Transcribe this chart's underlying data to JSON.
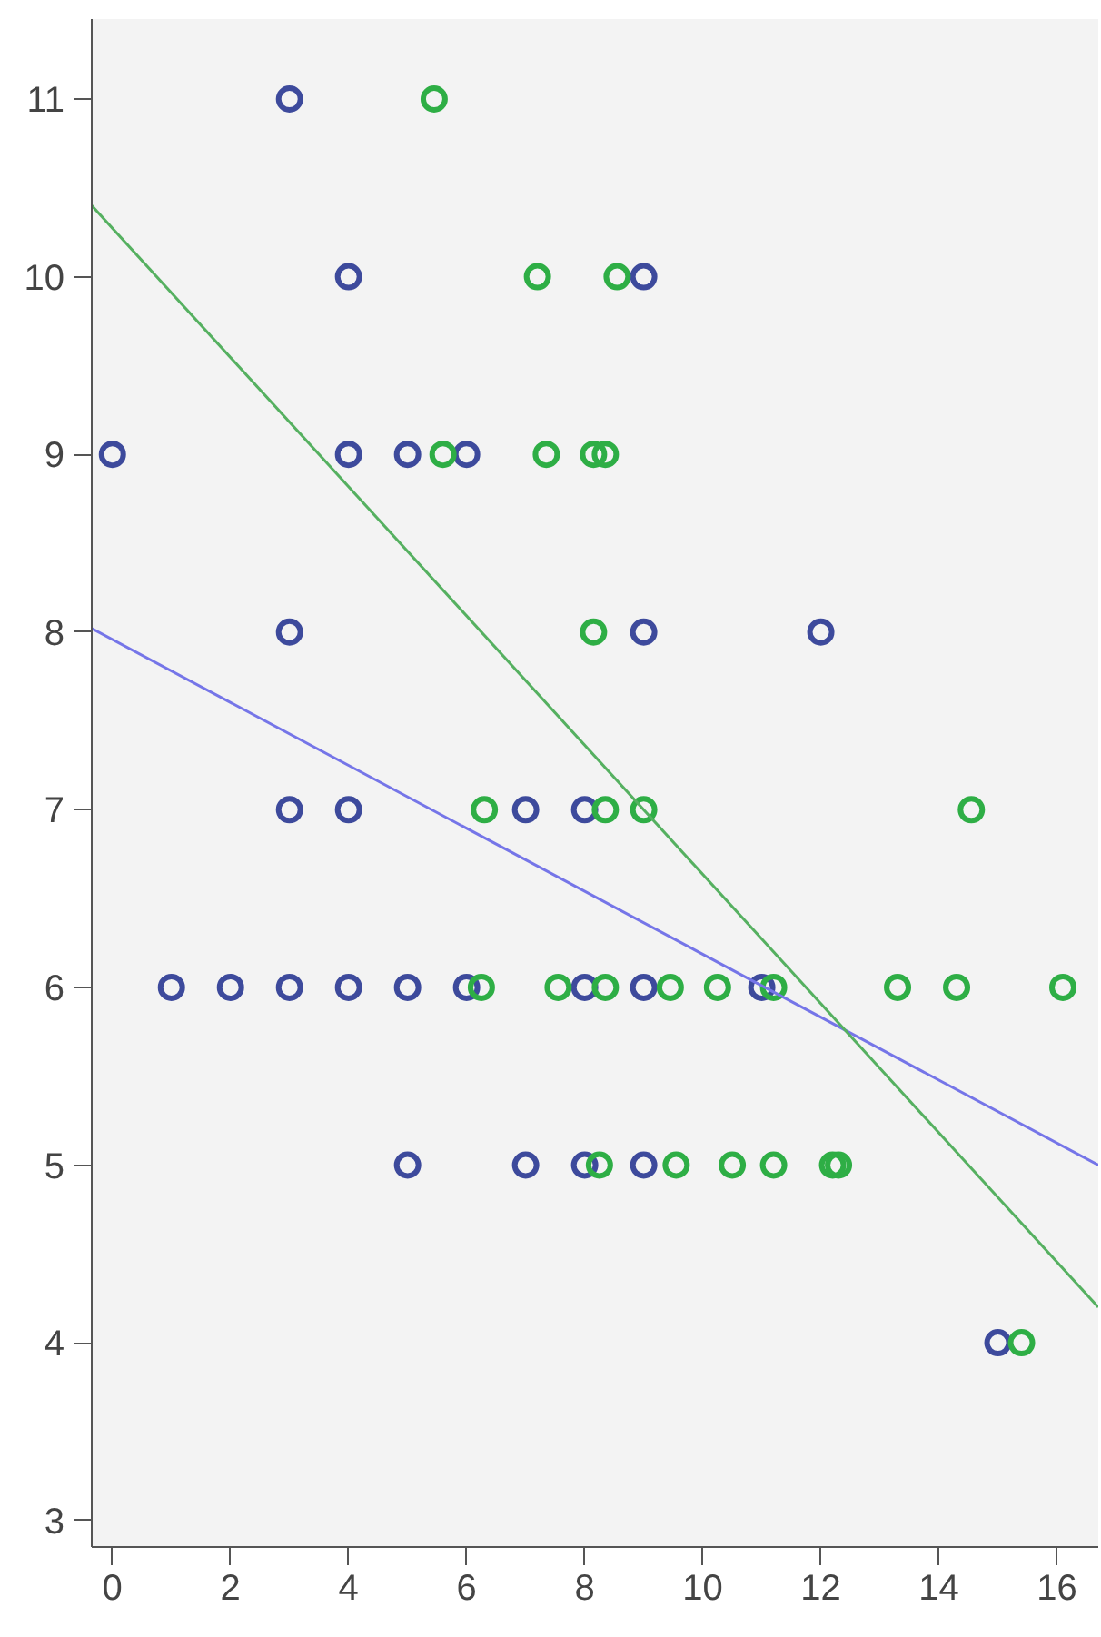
{
  "chart_data": {
    "type": "scatter",
    "grid": false,
    "xlim": [
      -0.35,
      16.7
    ],
    "ylim": [
      2.85,
      11.45
    ],
    "xticks": [
      0,
      2,
      4,
      6,
      8,
      10,
      12,
      14,
      16
    ],
    "yticks": [
      3,
      4,
      5,
      6,
      7,
      8,
      9,
      10,
      11
    ],
    "series": [
      {
        "color": "#3d4a9c",
        "marker": "circle",
        "x": [
          3,
          4,
          9,
          0,
          4,
          5,
          6,
          3,
          9,
          12,
          3,
          4,
          7,
          8,
          1,
          2,
          3,
          4,
          5,
          6,
          8,
          9,
          11,
          5,
          7,
          8,
          9,
          15
        ],
        "values": [
          11,
          10,
          10,
          9,
          9,
          9,
          9,
          8,
          8,
          8,
          7,
          7,
          7,
          7,
          6,
          6,
          6,
          6,
          6,
          6,
          6,
          6,
          6,
          5,
          5,
          5,
          5,
          4
        ]
      },
      {
        "color": "#2eae45",
        "marker": "circle",
        "x": [
          5.45,
          7.2,
          8.55,
          5.6,
          7.35,
          8.15,
          8.35,
          8.15,
          6.3,
          8.35,
          9.0,
          14.55,
          6.25,
          7.55,
          8.35,
          9.45,
          10.25,
          11.2,
          13.3,
          14.3,
          16.1,
          8.25,
          9.55,
          10.5,
          11.2,
          12.2,
          12.3,
          15.4
        ],
        "values": [
          11,
          10,
          10,
          9,
          9,
          9,
          9,
          8,
          7,
          7,
          7,
          7,
          6,
          6,
          6,
          6,
          6,
          6,
          6,
          6,
          6,
          5,
          5,
          5,
          5,
          5,
          5,
          4
        ]
      },
      {
        "type": "line",
        "color": "#7575e8",
        "marker": "none",
        "x": [
          -0.35,
          16.7
        ],
        "values": [
          8.02,
          5.0
        ]
      },
      {
        "type": "line",
        "color": "#55b060",
        "marker": "none",
        "x": [
          -0.35,
          16.7
        ],
        "values": [
          10.4,
          4.2
        ]
      }
    ]
  }
}
